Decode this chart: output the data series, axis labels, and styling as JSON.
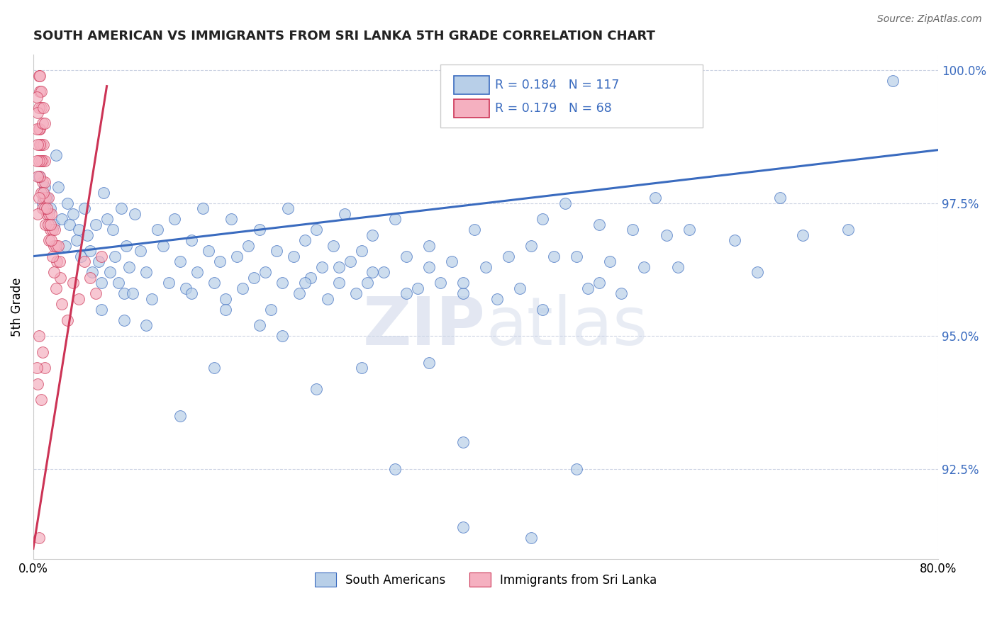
{
  "title": "SOUTH AMERICAN VS IMMIGRANTS FROM SRI LANKA 5TH GRADE CORRELATION CHART",
  "source": "Source: ZipAtlas.com",
  "ylabel": "5th Grade",
  "xlim": [
    0.0,
    0.8
  ],
  "ylim": [
    0.908,
    1.003
  ],
  "yticks": [
    0.925,
    0.95,
    0.975,
    1.0
  ],
  "ytick_labels": [
    "92.5%",
    "95.0%",
    "97.5%",
    "100.0%"
  ],
  "xticks": [
    0.0,
    0.8
  ],
  "xtick_labels": [
    "0.0%",
    "80.0%"
  ],
  "r_blue": 0.184,
  "n_blue": 117,
  "r_pink": 0.179,
  "n_pink": 68,
  "blue_color": "#b8cfe8",
  "pink_color": "#f5b0c0",
  "trend_color": "#3a6bbf",
  "pink_trend_color": "#cc3355",
  "watermark_zip": "ZIP",
  "watermark_atlas": "atlas",
  "blue_trend_x": [
    0.0,
    0.8
  ],
  "blue_trend_y": [
    0.965,
    0.985
  ],
  "pink_trend_x": [
    0.0,
    0.065
  ],
  "pink_trend_y": [
    0.91,
    0.997
  ],
  "blue_scatter": [
    [
      0.005,
      0.98
    ],
    [
      0.008,
      0.975
    ],
    [
      0.01,
      0.978
    ],
    [
      0.012,
      0.976
    ],
    [
      0.015,
      0.974
    ],
    [
      0.018,
      0.971
    ],
    [
      0.02,
      0.984
    ],
    [
      0.022,
      0.978
    ],
    [
      0.025,
      0.972
    ],
    [
      0.028,
      0.967
    ],
    [
      0.03,
      0.975
    ],
    [
      0.032,
      0.971
    ],
    [
      0.035,
      0.973
    ],
    [
      0.038,
      0.968
    ],
    [
      0.04,
      0.97
    ],
    [
      0.042,
      0.965
    ],
    [
      0.045,
      0.974
    ],
    [
      0.048,
      0.969
    ],
    [
      0.05,
      0.966
    ],
    [
      0.052,
      0.962
    ],
    [
      0.055,
      0.971
    ],
    [
      0.058,
      0.964
    ],
    [
      0.06,
      0.96
    ],
    [
      0.062,
      0.977
    ],
    [
      0.065,
      0.972
    ],
    [
      0.068,
      0.962
    ],
    [
      0.07,
      0.97
    ],
    [
      0.072,
      0.965
    ],
    [
      0.075,
      0.96
    ],
    [
      0.078,
      0.974
    ],
    [
      0.08,
      0.958
    ],
    [
      0.082,
      0.967
    ],
    [
      0.085,
      0.963
    ],
    [
      0.088,
      0.958
    ],
    [
      0.09,
      0.973
    ],
    [
      0.095,
      0.966
    ],
    [
      0.1,
      0.962
    ],
    [
      0.105,
      0.957
    ],
    [
      0.11,
      0.97
    ],
    [
      0.115,
      0.967
    ],
    [
      0.12,
      0.96
    ],
    [
      0.125,
      0.972
    ],
    [
      0.13,
      0.964
    ],
    [
      0.135,
      0.959
    ],
    [
      0.14,
      0.968
    ],
    [
      0.145,
      0.962
    ],
    [
      0.15,
      0.974
    ],
    [
      0.155,
      0.966
    ],
    [
      0.16,
      0.96
    ],
    [
      0.165,
      0.964
    ],
    [
      0.17,
      0.957
    ],
    [
      0.175,
      0.972
    ],
    [
      0.18,
      0.965
    ],
    [
      0.185,
      0.959
    ],
    [
      0.19,
      0.967
    ],
    [
      0.195,
      0.961
    ],
    [
      0.2,
      0.97
    ],
    [
      0.205,
      0.962
    ],
    [
      0.21,
      0.955
    ],
    [
      0.215,
      0.966
    ],
    [
      0.22,
      0.96
    ],
    [
      0.225,
      0.974
    ],
    [
      0.23,
      0.965
    ],
    [
      0.235,
      0.958
    ],
    [
      0.24,
      0.968
    ],
    [
      0.245,
      0.961
    ],
    [
      0.25,
      0.97
    ],
    [
      0.255,
      0.963
    ],
    [
      0.26,
      0.957
    ],
    [
      0.265,
      0.967
    ],
    [
      0.27,
      0.96
    ],
    [
      0.275,
      0.973
    ],
    [
      0.28,
      0.964
    ],
    [
      0.285,
      0.958
    ],
    [
      0.29,
      0.966
    ],
    [
      0.295,
      0.96
    ],
    [
      0.3,
      0.969
    ],
    [
      0.31,
      0.962
    ],
    [
      0.32,
      0.972
    ],
    [
      0.33,
      0.965
    ],
    [
      0.34,
      0.959
    ],
    [
      0.35,
      0.967
    ],
    [
      0.36,
      0.96
    ],
    [
      0.37,
      0.964
    ],
    [
      0.38,
      0.958
    ],
    [
      0.39,
      0.97
    ],
    [
      0.4,
      0.963
    ],
    [
      0.41,
      0.957
    ],
    [
      0.42,
      0.965
    ],
    [
      0.43,
      0.959
    ],
    [
      0.44,
      0.967
    ],
    [
      0.45,
      0.972
    ],
    [
      0.46,
      0.965
    ],
    [
      0.47,
      0.975
    ],
    [
      0.48,
      0.965
    ],
    [
      0.49,
      0.959
    ],
    [
      0.5,
      0.971
    ],
    [
      0.51,
      0.964
    ],
    [
      0.52,
      0.958
    ],
    [
      0.53,
      0.97
    ],
    [
      0.54,
      0.963
    ],
    [
      0.55,
      0.976
    ],
    [
      0.56,
      0.969
    ],
    [
      0.57,
      0.963
    ],
    [
      0.1,
      0.952
    ],
    [
      0.14,
      0.958
    ],
    [
      0.17,
      0.955
    ],
    [
      0.2,
      0.952
    ],
    [
      0.24,
      0.96
    ],
    [
      0.27,
      0.963
    ],
    [
      0.3,
      0.962
    ],
    [
      0.33,
      0.958
    ],
    [
      0.35,
      0.963
    ],
    [
      0.38,
      0.96
    ],
    [
      0.06,
      0.955
    ],
    [
      0.08,
      0.953
    ],
    [
      0.16,
      0.944
    ],
    [
      0.22,
      0.95
    ],
    [
      0.29,
      0.944
    ],
    [
      0.35,
      0.945
    ],
    [
      0.13,
      0.935
    ],
    [
      0.25,
      0.94
    ],
    [
      0.38,
      0.93
    ],
    [
      0.45,
      0.955
    ],
    [
      0.5,
      0.96
    ],
    [
      0.58,
      0.97
    ],
    [
      0.62,
      0.968
    ],
    [
      0.64,
      0.962
    ],
    [
      0.66,
      0.976
    ],
    [
      0.68,
      0.969
    ],
    [
      0.72,
      0.97
    ],
    [
      0.76,
      0.998
    ],
    [
      0.48,
      0.925
    ],
    [
      0.38,
      0.914
    ],
    [
      0.32,
      0.925
    ],
    [
      0.44,
      0.912
    ]
  ],
  "pink_scatter": [
    [
      0.005,
      0.999
    ],
    [
      0.006,
      0.996
    ],
    [
      0.007,
      0.993
    ],
    [
      0.005,
      0.993
    ],
    [
      0.006,
      0.989
    ],
    [
      0.007,
      0.986
    ],
    [
      0.008,
      0.983
    ],
    [
      0.009,
      0.986
    ],
    [
      0.01,
      0.983
    ],
    [
      0.008,
      0.979
    ],
    [
      0.009,
      0.976
    ],
    [
      0.01,
      0.979
    ],
    [
      0.011,
      0.976
    ],
    [
      0.012,
      0.973
    ],
    [
      0.013,
      0.976
    ],
    [
      0.014,
      0.973
    ],
    [
      0.015,
      0.97
    ],
    [
      0.016,
      0.973
    ],
    [
      0.017,
      0.97
    ],
    [
      0.018,
      0.967
    ],
    [
      0.019,
      0.97
    ],
    [
      0.02,
      0.967
    ],
    [
      0.021,
      0.964
    ],
    [
      0.022,
      0.967
    ],
    [
      0.023,
      0.964
    ],
    [
      0.024,
      0.961
    ],
    [
      0.007,
      0.996
    ],
    [
      0.006,
      0.999
    ],
    [
      0.003,
      0.995
    ],
    [
      0.004,
      0.992
    ],
    [
      0.005,
      0.989
    ],
    [
      0.006,
      0.986
    ],
    [
      0.007,
      0.983
    ],
    [
      0.004,
      0.986
    ],
    [
      0.003,
      0.989
    ],
    [
      0.008,
      0.99
    ],
    [
      0.009,
      0.993
    ],
    [
      0.01,
      0.99
    ],
    [
      0.005,
      0.983
    ],
    [
      0.006,
      0.98
    ],
    [
      0.007,
      0.977
    ],
    [
      0.008,
      0.974
    ],
    [
      0.009,
      0.977
    ],
    [
      0.01,
      0.974
    ],
    [
      0.011,
      0.971
    ],
    [
      0.012,
      0.974
    ],
    [
      0.013,
      0.971
    ],
    [
      0.014,
      0.968
    ],
    [
      0.015,
      0.971
    ],
    [
      0.016,
      0.968
    ],
    [
      0.017,
      0.965
    ],
    [
      0.018,
      0.962
    ],
    [
      0.004,
      0.98
    ],
    [
      0.003,
      0.983
    ],
    [
      0.005,
      0.976
    ],
    [
      0.004,
      0.973
    ],
    [
      0.02,
      0.959
    ],
    [
      0.025,
      0.956
    ],
    [
      0.03,
      0.953
    ],
    [
      0.035,
      0.96
    ],
    [
      0.04,
      0.957
    ],
    [
      0.045,
      0.964
    ],
    [
      0.05,
      0.961
    ],
    [
      0.055,
      0.958
    ],
    [
      0.06,
      0.965
    ],
    [
      0.005,
      0.95
    ],
    [
      0.008,
      0.947
    ],
    [
      0.01,
      0.944
    ],
    [
      0.003,
      0.944
    ],
    [
      0.004,
      0.941
    ],
    [
      0.007,
      0.938
    ],
    [
      0.005,
      0.912
    ]
  ]
}
